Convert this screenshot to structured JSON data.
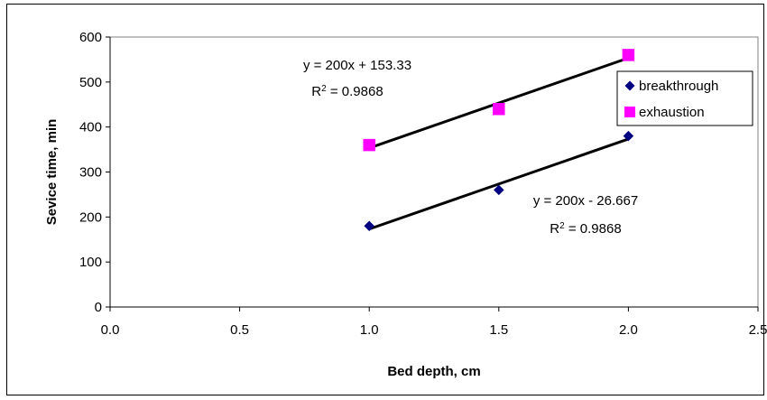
{
  "chart_data": {
    "type": "scatter",
    "xlabel": "Bed depth, cm",
    "ylabel": "Sevice time, min",
    "xlim": [
      0.0,
      2.5
    ],
    "ylim": [
      0,
      600
    ],
    "x_ticks": [
      "0.0",
      "0.5",
      "1.0",
      "1.5",
      "2.0",
      "2.5"
    ],
    "x_tick_values": [
      0.0,
      0.5,
      1.0,
      1.5,
      2.0,
      2.5
    ],
    "y_ticks": [
      "0",
      "100",
      "200",
      "300",
      "400",
      "500",
      "600"
    ],
    "y_tick_values": [
      0,
      100,
      200,
      300,
      400,
      500,
      600
    ],
    "grid": false,
    "legend_position": "right",
    "series": [
      {
        "name": "breakthrough",
        "marker": "diamond",
        "color": "#000080",
        "x": [
          1.0,
          1.5,
          2.0
        ],
        "y": [
          180,
          260,
          380
        ],
        "trendline": {
          "slope": 200,
          "intercept": -26.667,
          "equation": "y = 200x - 26.667",
          "r2_prefix": "R",
          "r2_exp": "2",
          "r2_value": " = 0.9868"
        }
      },
      {
        "name": "exhaustion",
        "marker": "square",
        "color": "#ff00ff",
        "x": [
          1.0,
          1.5,
          2.0
        ],
        "y": [
          360,
          440,
          560
        ],
        "trendline": {
          "slope": 200,
          "intercept": 153.33,
          "equation": "y = 200x + 153.33",
          "r2_prefix": "R",
          "r2_exp": "2",
          "r2_value": " = 0.9868"
        }
      }
    ],
    "trendline_color": "#000000"
  }
}
